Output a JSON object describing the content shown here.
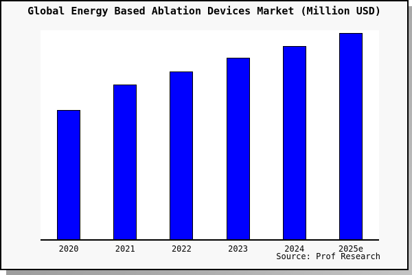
{
  "window": {
    "title": "Global Energy Based Ablation Devices Market (Million USD)"
  },
  "chart_data": {
    "type": "bar",
    "title": "Global Energy Based Ablation Devices Market (Million USD)",
    "categories": [
      "2020",
      "2021",
      "2022",
      "2023",
      "2024",
      "2025e"
    ],
    "values": [
      62.7,
      75.0,
      81.3,
      88.0,
      93.7,
      100.0
    ],
    "value_scale": "relative units; chart shows no y-axis ticks or labels, values estimated from bar heights with tallest bar = 100",
    "xlabel": "",
    "ylabel": "",
    "ylim": [
      0,
      102
    ],
    "grid": false,
    "legend": false,
    "source": "Source: Prof Research",
    "colors": {
      "bar_fill": "#0000ff",
      "bar_border": "#000000",
      "panel_background": "#f8f8f8",
      "plot_background": "#ffffff",
      "frame_border": "#000000",
      "shadow": "#a0a0a0",
      "text": "#000000"
    }
  }
}
